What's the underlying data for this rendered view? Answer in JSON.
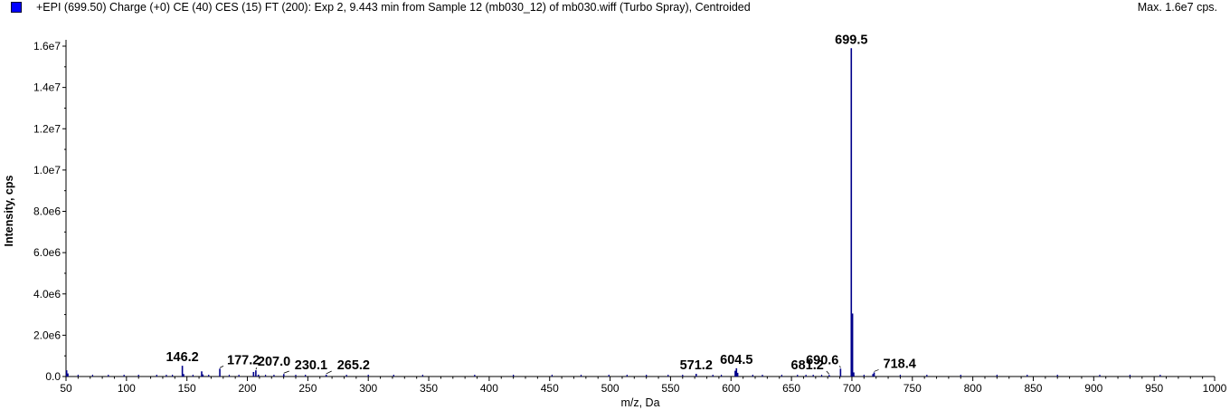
{
  "header": {
    "title": "+EPI (699.50) Charge (+0) CE (40) CES (15) FT (200): Exp 2, 9.443 min from Sample 12 (mb030_12) of mb030.wiff (Turbo Spray), Centroided",
    "max_label": "Max. 1.6e7 cps."
  },
  "colors": {
    "series": "#00008b",
    "legend": "#0000ff",
    "axis": "#000000"
  },
  "chart_data": {
    "type": "bar",
    "xlabel": "m/z, Da",
    "ylabel": "Intensity, cps",
    "xlim": [
      50,
      1000
    ],
    "ylim": [
      0,
      16000000
    ],
    "x_ticks": [
      50,
      100,
      150,
      200,
      250,
      300,
      350,
      400,
      450,
      500,
      550,
      600,
      650,
      700,
      750,
      800,
      850,
      900,
      950,
      1000
    ],
    "x_tick_labels": [
      "50",
      "100",
      "150",
      "200",
      "250",
      "300",
      "350",
      "400",
      "450",
      "500",
      "550",
      "600",
      "650",
      "700",
      "750",
      "800",
      "850",
      "900",
      "950",
      "1000"
    ],
    "y_ticks": [
      0,
      2000000,
      4000000,
      6000000,
      8000000,
      10000000,
      12000000,
      14000000,
      16000000
    ],
    "y_tick_labels": [
      "0.0",
      "2.0e6",
      "4.0e6",
      "6.0e6",
      "8.0e6",
      "1.0e7",
      "1.2e7",
      "1.4e7",
      "1.6e7"
    ],
    "peaks": [
      {
        "mz": 50.5,
        "intensity": 300000
      },
      {
        "mz": 51.5,
        "intensity": 150000
      },
      {
        "mz": 146.2,
        "intensity": 520000,
        "label": "146.2"
      },
      {
        "mz": 147.2,
        "intensity": 120000
      },
      {
        "mz": 162.2,
        "intensity": 250000
      },
      {
        "mz": 163.2,
        "intensity": 100000
      },
      {
        "mz": 177.2,
        "intensity": 380000,
        "label": "177.2"
      },
      {
        "mz": 205.1,
        "intensity": 220000
      },
      {
        "mz": 207.0,
        "intensity": 300000,
        "label": "207.0"
      },
      {
        "mz": 209.1,
        "intensity": 90000
      },
      {
        "mz": 230.1,
        "intensity": 120000,
        "label": "230.1"
      },
      {
        "mz": 265.2,
        "intensity": 90000,
        "label": "265.2"
      },
      {
        "mz": 571.2,
        "intensity": 130000,
        "label": "571.2"
      },
      {
        "mz": 603.5,
        "intensity": 280000
      },
      {
        "mz": 604.5,
        "intensity": 400000,
        "label": "604.5"
      },
      {
        "mz": 605.5,
        "intensity": 180000
      },
      {
        "mz": 681.2,
        "intensity": 70000,
        "label": "681.2"
      },
      {
        "mz": 690.6,
        "intensity": 380000,
        "label": "690.6"
      },
      {
        "mz": 699.5,
        "intensity": 15900000,
        "label": "699.5"
      },
      {
        "mz": 700.5,
        "intensity": 3050000
      },
      {
        "mz": 701.5,
        "intensity": 200000
      },
      {
        "mz": 717.4,
        "intensity": 120000
      },
      {
        "mz": 718.4,
        "intensity": 200000,
        "label": "718.4"
      }
    ],
    "minor_peaks_mz": [
      60,
      72,
      85,
      98,
      110,
      125,
      133,
      138,
      155,
      168,
      185,
      193,
      215,
      222,
      240,
      248,
      282,
      300,
      321,
      345,
      388,
      420,
      452,
      476,
      499,
      514,
      530,
      548,
      560,
      585,
      592,
      618,
      626,
      642,
      655,
      662,
      668,
      675,
      710,
      740,
      762,
      790,
      820,
      845,
      870,
      905,
      930,
      955
    ]
  }
}
